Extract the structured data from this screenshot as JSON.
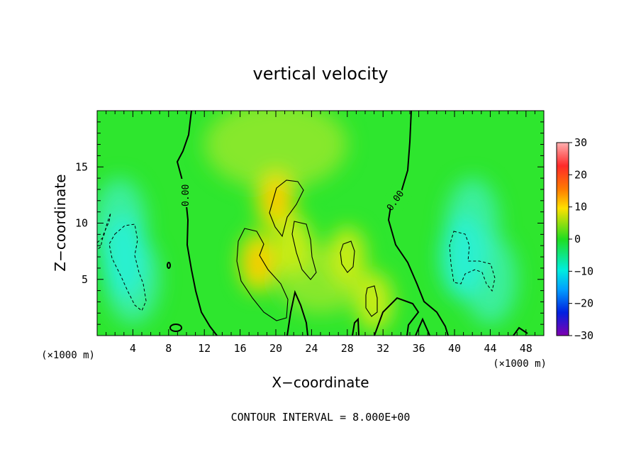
{
  "chart_data": {
    "type": "heatmap",
    "title": "vertical velocity",
    "xlabel": "X−coordinate",
    "ylabel": "Z−coordinate",
    "x_unit": "(×1000 m)",
    "x_unit_right": "(×1000 m)",
    "xlim": [
      0,
      50
    ],
    "ylim": [
      0,
      20
    ],
    "xticks": [
      4,
      8,
      12,
      16,
      20,
      24,
      28,
      32,
      36,
      40,
      44,
      48
    ],
    "yticks": [
      5,
      10,
      15
    ],
    "colorbar": {
      "range": [
        -30,
        30
      ],
      "ticks": [
        30,
        20,
        10,
        0,
        -10,
        -20,
        -30
      ],
      "tick_labels": [
        "30",
        "20",
        "10",
        "0",
        "−10",
        "−20",
        "−30"
      ]
    },
    "contour_interval": 8.0,
    "contour_labels": [
      "0.00",
      "0.00"
    ],
    "footer": "CONTOUR INTERVAL = 8.000E+00",
    "field_features": [
      {
        "x": 20,
        "z": 12,
        "value": 11
      },
      {
        "x": 18,
        "z": 6.5,
        "value": 12
      },
      {
        "x": 22,
        "z": 8,
        "value": 8
      },
      {
        "x": 28,
        "z": 7,
        "value": 8
      },
      {
        "x": 31,
        "z": 3,
        "value": 8
      },
      {
        "x": 3,
        "z": 7,
        "value": -10
      },
      {
        "x": 41,
        "z": 7,
        "value": -10
      }
    ]
  }
}
